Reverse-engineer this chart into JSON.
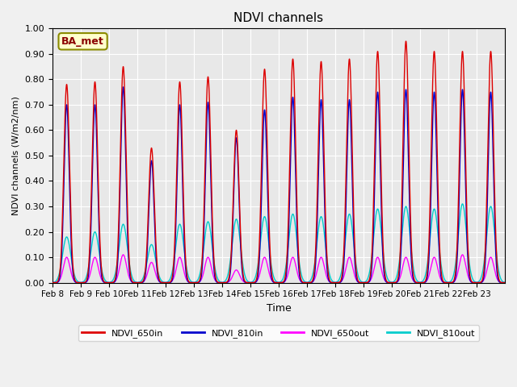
{
  "title": "NDVI channels",
  "ylabel": "NDVI channels (W/m2/nm)",
  "xlabel": "Time",
  "ylim": [
    0.0,
    1.0
  ],
  "yticks": [
    0.0,
    0.1,
    0.2,
    0.3,
    0.4,
    0.5,
    0.6,
    0.7,
    0.8,
    0.9,
    1.0
  ],
  "xtick_labels": [
    "Feb 8",
    "Feb 9",
    "Feb 10",
    "Feb 11",
    "Feb 12",
    "Feb 13",
    "Feb 14",
    "Feb 15",
    "Feb 16",
    "Feb 17",
    "Feb 18",
    "Feb 19",
    "Feb 20",
    "Feb 21",
    "Feb 22",
    "Feb 23"
  ],
  "color_650in": "#dd0000",
  "color_810in": "#0000cc",
  "color_650out": "#ff00ff",
  "color_810out": "#00cccc",
  "legend_label_box": "BA_met",
  "bg_color": "#e8e8e8",
  "grid_color": "#ffffff",
  "legend_entries": [
    "NDVI_650in",
    "NDVI_810in",
    "NDVI_650out",
    "NDVI_810out"
  ],
  "peaks_650in": [
    0.78,
    0.79,
    0.85,
    0.53,
    0.79,
    0.81,
    0.6,
    0.84,
    0.88,
    0.87,
    0.88,
    0.91,
    0.95,
    0.91,
    0.91,
    0.91
  ],
  "peaks_810in": [
    0.7,
    0.7,
    0.77,
    0.48,
    0.7,
    0.71,
    0.57,
    0.68,
    0.73,
    0.72,
    0.72,
    0.75,
    0.76,
    0.75,
    0.76,
    0.75
  ],
  "peaks_650out": [
    0.1,
    0.1,
    0.11,
    0.08,
    0.1,
    0.1,
    0.05,
    0.1,
    0.1,
    0.1,
    0.1,
    0.1,
    0.1,
    0.1,
    0.11,
    0.1
  ],
  "peaks_810out": [
    0.18,
    0.2,
    0.23,
    0.15,
    0.23,
    0.24,
    0.25,
    0.26,
    0.27,
    0.26,
    0.27,
    0.29,
    0.3,
    0.29,
    0.31,
    0.3
  ]
}
